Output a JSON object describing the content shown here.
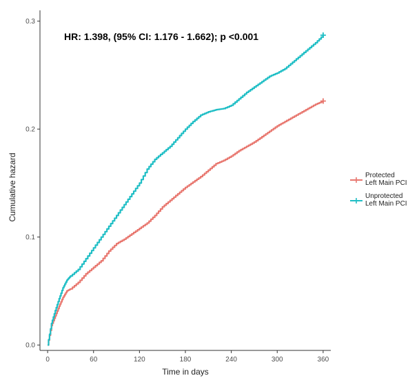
{
  "chart_data": {
    "type": "line",
    "title": "",
    "annotation": "HR: 1.398, (95% CI: 1.176 - 1.662); p <0.001",
    "xlabel": "Time in days",
    "ylabel": "Cumulative hazard",
    "xlim": [
      -10,
      370
    ],
    "ylim": [
      -0.005,
      0.31
    ],
    "x_ticks": [
      0,
      60,
      120,
      180,
      240,
      300,
      360
    ],
    "y_ticks": [
      0.0,
      0.1,
      0.2,
      0.3
    ],
    "x_tick_labels": [
      "0",
      "60",
      "120",
      "180",
      "240",
      "300",
      "360"
    ],
    "y_tick_labels": [
      "0.0",
      "0.1",
      "0.2",
      "0.3"
    ],
    "grid": false,
    "legend_position": "right",
    "series": [
      {
        "name": "Protected Left Main PCI",
        "legend_lines": [
          "Protected",
          "Left Main PCI"
        ],
        "color": "#e8776f",
        "x": [
          0,
          5,
          10,
          15,
          20,
          25,
          30,
          40,
          50,
          60,
          70,
          80,
          90,
          100,
          110,
          120,
          130,
          140,
          150,
          160,
          170,
          180,
          190,
          200,
          210,
          220,
          230,
          240,
          250,
          260,
          270,
          280,
          290,
          300,
          310,
          320,
          330,
          340,
          350,
          360
        ],
        "y": [
          0.0,
          0.018,
          0.027,
          0.036,
          0.044,
          0.05,
          0.052,
          0.058,
          0.066,
          0.072,
          0.078,
          0.087,
          0.094,
          0.098,
          0.103,
          0.108,
          0.113,
          0.12,
          0.128,
          0.134,
          0.14,
          0.146,
          0.151,
          0.156,
          0.162,
          0.168,
          0.171,
          0.175,
          0.18,
          0.184,
          0.188,
          0.193,
          0.198,
          0.203,
          0.207,
          0.211,
          0.215,
          0.219,
          0.223,
          0.226
        ]
      },
      {
        "name": "Unprotected Left Main PCI",
        "legend_lines": [
          "Unprotected",
          "Left Main PCI"
        ],
        "color": "#1fbec5",
        "x": [
          0,
          5,
          10,
          15,
          20,
          25,
          30,
          40,
          50,
          60,
          70,
          80,
          90,
          100,
          110,
          120,
          130,
          140,
          150,
          160,
          170,
          180,
          190,
          200,
          210,
          220,
          230,
          240,
          250,
          260,
          270,
          280,
          290,
          300,
          310,
          320,
          330,
          340,
          350,
          360
        ],
        "y": [
          0.0,
          0.02,
          0.032,
          0.043,
          0.053,
          0.06,
          0.064,
          0.07,
          0.08,
          0.09,
          0.1,
          0.11,
          0.12,
          0.13,
          0.14,
          0.15,
          0.163,
          0.172,
          0.178,
          0.184,
          0.192,
          0.2,
          0.207,
          0.213,
          0.216,
          0.218,
          0.219,
          0.222,
          0.228,
          0.234,
          0.239,
          0.244,
          0.249,
          0.252,
          0.256,
          0.262,
          0.268,
          0.274,
          0.28,
          0.287
        ]
      }
    ]
  }
}
